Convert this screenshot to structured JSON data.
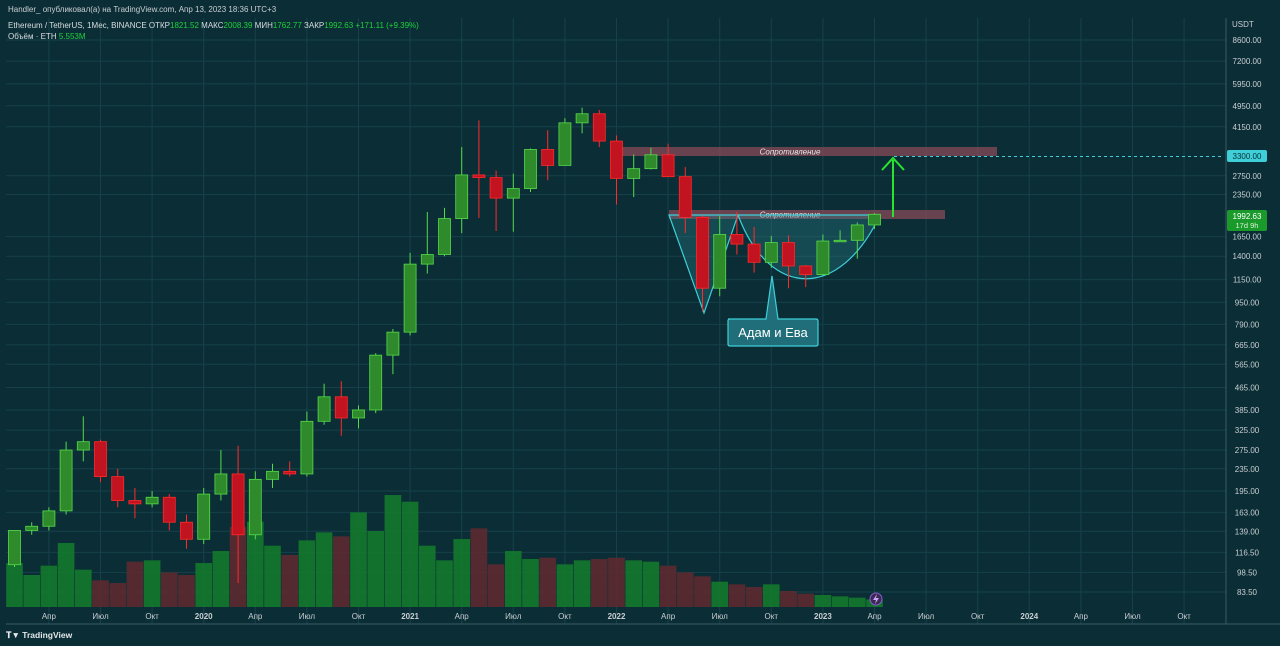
{
  "publisher": "Handler_ опубликовал(а) на TradingView.com, Апр 13, 2023 18:36 UTC+3",
  "symbol": "Ethereum / TetherUS, 1Мес, BINANCE",
  "ohlc": {
    "o_label": "ОТКР",
    "o": "1821.52",
    "h_label": "МАКС",
    "h": "2008.39",
    "l_label": "МИН",
    "l": "1762.77",
    "c_label": "ЗАКР",
    "c": "1992.63",
    "change": "+171.11 (+9.39%)"
  },
  "volume": {
    "label": "Объём · ETH",
    "value": "5.553M"
  },
  "currency": "USDT",
  "footer": "TradingView",
  "price_badge": {
    "price": "1992.63",
    "countdown": "17d 9h"
  },
  "target_badge": "3300.00",
  "annotations": {
    "resistance_upper": "Сопротивление",
    "resistance_lower": "Сопротивление",
    "pattern_label": "Адам и Ева"
  },
  "colors": {
    "background": "#0b2e36",
    "up": "#2f8a2c",
    "up_border": "#55d94a",
    "down": "#c21320",
    "down_border": "#ff2a2a",
    "vol_up": "#137a2c",
    "vol_down": "#5c2a30",
    "resistance": "#8a4a58",
    "pattern": "#3ecfd8",
    "arrow": "#27e42f"
  },
  "chart_data": {
    "type": "candlestick",
    "title": "Ethereum / TetherUS, 1Мес, BINANCE",
    "scale": "log",
    "ylim": [
      70,
      11000
    ],
    "y_ticks": [
      83.5,
      98.5,
      116.5,
      139.0,
      163.0,
      195.0,
      235.0,
      275.0,
      325.0,
      385.0,
      465.0,
      565.0,
      665.0,
      790.0,
      950.0,
      1150.0,
      1400.0,
      1650.0,
      2350.0,
      2750.0,
      4150.0,
      4950.0,
      5950.0,
      7200.0,
      8600.0
    ],
    "x_tick_labels": [
      "Апр",
      "Июл",
      "Окт",
      "2020",
      "Апр",
      "Июл",
      "Окт",
      "2021",
      "Апр",
      "Июл",
      "Окт",
      "2022",
      "Апр",
      "Июл",
      "Окт",
      "2023",
      "Апр",
      "Июл",
      "Окт",
      "2024",
      "Апр",
      "Июл",
      "Окт"
    ],
    "candles": [
      {
        "o": 105,
        "h": 140,
        "l": 103,
        "c": 140
      },
      {
        "o": 140,
        "h": 150,
        "l": 135,
        "c": 145
      },
      {
        "o": 145,
        "h": 170,
        "l": 140,
        "c": 165
      },
      {
        "o": 165,
        "h": 295,
        "l": 160,
        "c": 275
      },
      {
        "o": 275,
        "h": 365,
        "l": 250,
        "c": 295
      },
      {
        "o": 295,
        "h": 300,
        "l": 210,
        "c": 220
      },
      {
        "o": 220,
        "h": 235,
        "l": 170,
        "c": 180
      },
      {
        "o": 180,
        "h": 200,
        "l": 155,
        "c": 175
      },
      {
        "o": 175,
        "h": 195,
        "l": 170,
        "c": 185
      },
      {
        "o": 185,
        "h": 190,
        "l": 140,
        "c": 150
      },
      {
        "o": 150,
        "h": 160,
        "l": 120,
        "c": 130
      },
      {
        "o": 130,
        "h": 200,
        "l": 125,
        "c": 190
      },
      {
        "o": 190,
        "h": 275,
        "l": 180,
        "c": 225
      },
      {
        "o": 225,
        "h": 285,
        "l": 90,
        "c": 135
      },
      {
        "o": 135,
        "h": 230,
        "l": 130,
        "c": 215
      },
      {
        "o": 215,
        "h": 245,
        "l": 200,
        "c": 230
      },
      {
        "o": 230,
        "h": 250,
        "l": 220,
        "c": 225
      },
      {
        "o": 225,
        "h": 380,
        "l": 220,
        "c": 350
      },
      {
        "o": 350,
        "h": 480,
        "l": 340,
        "c": 430
      },
      {
        "o": 430,
        "h": 490,
        "l": 310,
        "c": 360
      },
      {
        "o": 360,
        "h": 400,
        "l": 330,
        "c": 385
      },
      {
        "o": 385,
        "h": 620,
        "l": 375,
        "c": 610
      },
      {
        "o": 610,
        "h": 760,
        "l": 520,
        "c": 740
      },
      {
        "o": 740,
        "h": 1440,
        "l": 720,
        "c": 1310
      },
      {
        "o": 1310,
        "h": 2030,
        "l": 1210,
        "c": 1420
      },
      {
        "o": 1420,
        "h": 2100,
        "l": 1400,
        "c": 1920
      },
      {
        "o": 1920,
        "h": 3500,
        "l": 1700,
        "c": 2770
      },
      {
        "o": 2770,
        "h": 4380,
        "l": 1930,
        "c": 2710
      },
      {
        "o": 2710,
        "h": 2870,
        "l": 1730,
        "c": 2280
      },
      {
        "o": 2280,
        "h": 2800,
        "l": 1720,
        "c": 2470
      },
      {
        "o": 2470,
        "h": 3460,
        "l": 2400,
        "c": 3430
      },
      {
        "o": 3430,
        "h": 4030,
        "l": 2650,
        "c": 3000
      },
      {
        "o": 3000,
        "h": 4460,
        "l": 2990,
        "c": 4290
      },
      {
        "o": 4290,
        "h": 4870,
        "l": 3930,
        "c": 4630
      },
      {
        "o": 4630,
        "h": 4780,
        "l": 3500,
        "c": 3680
      },
      {
        "o": 3680,
        "h": 3860,
        "l": 2160,
        "c": 2690
      },
      {
        "o": 2690,
        "h": 3290,
        "l": 2300,
        "c": 2920
      },
      {
        "o": 2920,
        "h": 3480,
        "l": 2900,
        "c": 3280
      },
      {
        "o": 3280,
        "h": 3600,
        "l": 2720,
        "c": 2730
      },
      {
        "o": 2730,
        "h": 2960,
        "l": 1700,
        "c": 1940
      },
      {
        "o": 1940,
        "h": 1970,
        "l": 880,
        "c": 1070
      },
      {
        "o": 1070,
        "h": 1960,
        "l": 1000,
        "c": 1680
      },
      {
        "o": 1680,
        "h": 2030,
        "l": 1420,
        "c": 1550
      },
      {
        "o": 1550,
        "h": 1790,
        "l": 1220,
        "c": 1330
      },
      {
        "o": 1330,
        "h": 1660,
        "l": 1270,
        "c": 1570
      },
      {
        "o": 1570,
        "h": 1670,
        "l": 1070,
        "c": 1290
      },
      {
        "o": 1290,
        "h": 1300,
        "l": 1080,
        "c": 1200
      },
      {
        "o": 1200,
        "h": 1680,
        "l": 1190,
        "c": 1590
      },
      {
        "o": 1590,
        "h": 1740,
        "l": 1580,
        "c": 1600
      },
      {
        "o": 1600,
        "h": 1860,
        "l": 1370,
        "c": 1820
      },
      {
        "o": 1820,
        "h": 2010,
        "l": 1760,
        "c": 1990
      }
    ],
    "volume_scale_max": 5.553,
    "volumes": [
      1.65,
      1.2,
      1.55,
      2.4,
      1.4,
      1.0,
      0.9,
      1.7,
      1.75,
      1.3,
      1.2,
      1.65,
      2.1,
      3.0,
      3.2,
      2.3,
      1.95,
      2.5,
      2.8,
      2.65,
      3.55,
      2.85,
      4.2,
      3.95,
      2.3,
      1.75,
      2.55,
      2.95,
      1.6,
      2.1,
      1.8,
      1.85,
      1.6,
      1.75,
      1.8,
      1.85,
      1.75,
      1.7,
      1.55,
      1.3,
      1.15,
      0.95,
      0.85,
      0.75,
      0.85,
      0.6,
      0.5,
      0.45,
      0.4,
      0.35,
      0.28
    ]
  }
}
